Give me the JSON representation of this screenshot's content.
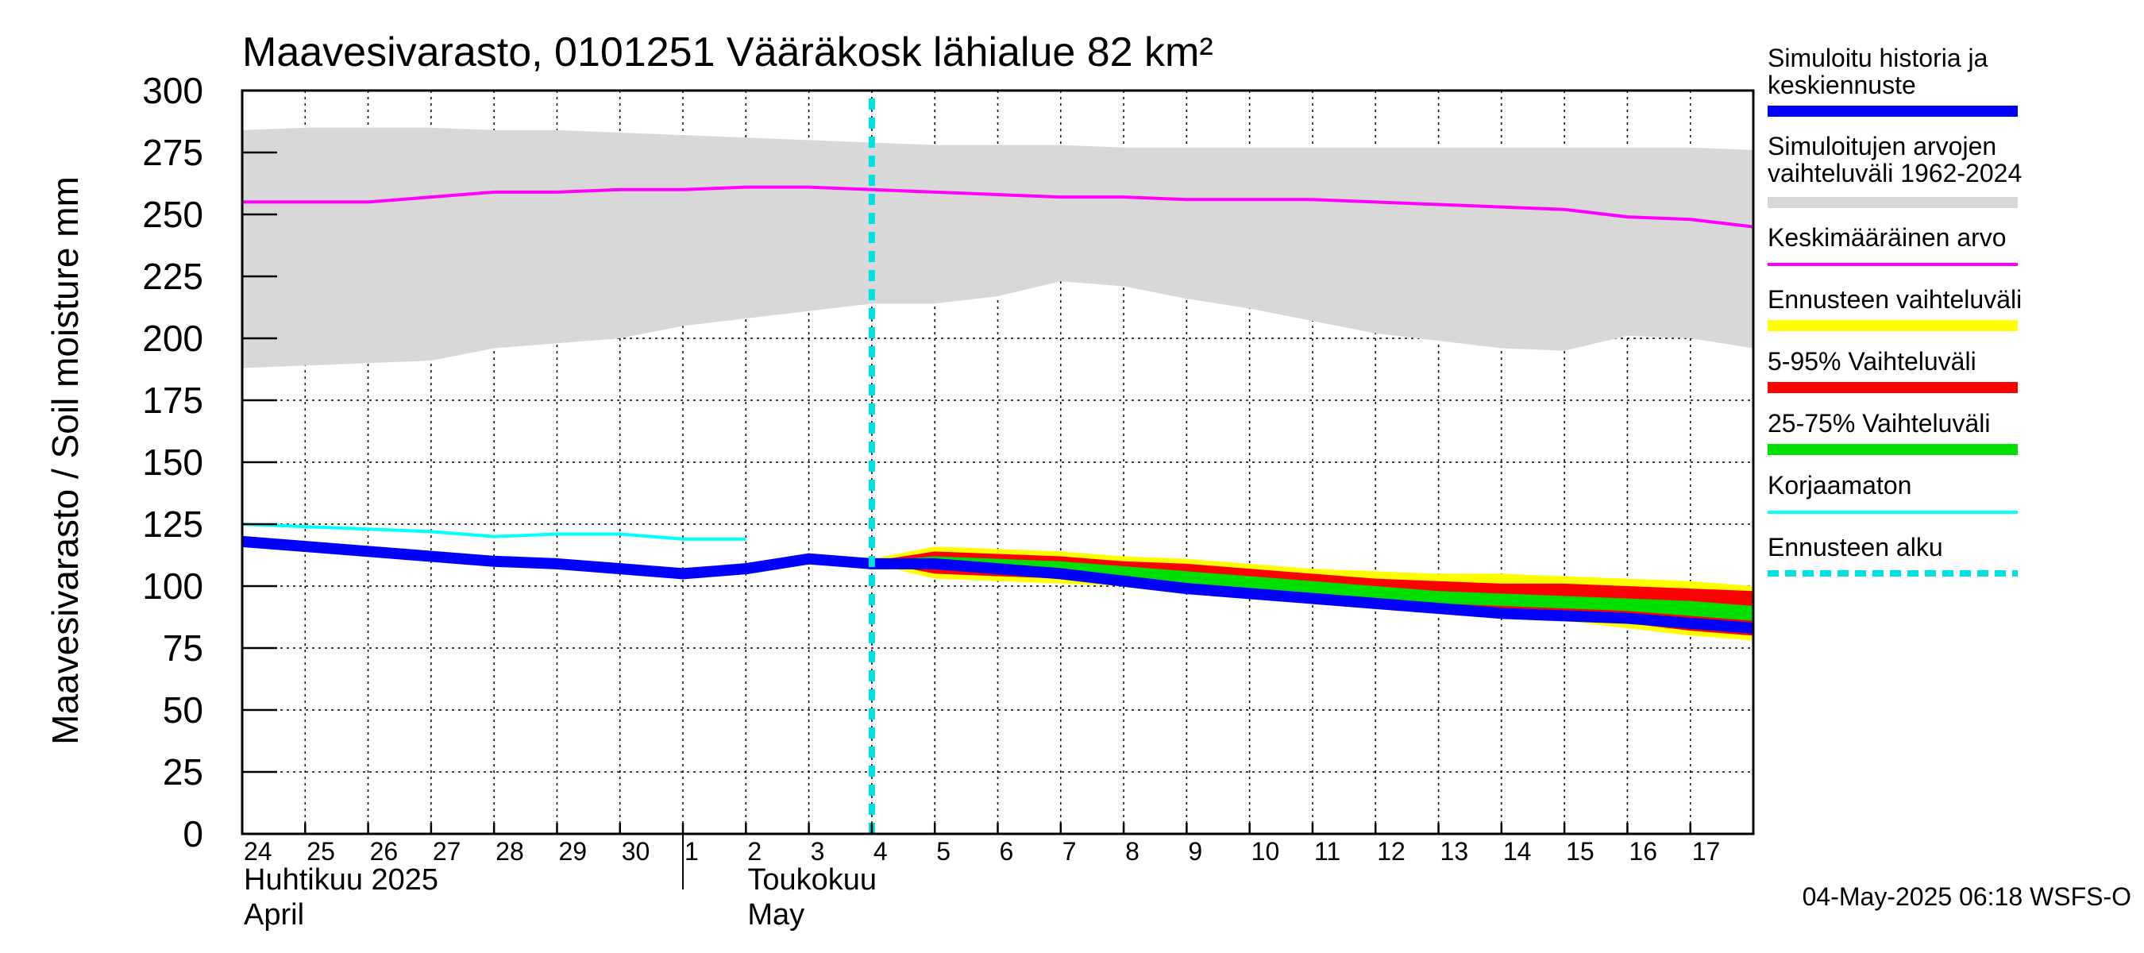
{
  "chart_data": {
    "type": "line",
    "title": "Maavesivarasto, 0101251 Vääräkosk lähialue 82 km²",
    "ylabel": "Maavesivarasto / Soil moisture   mm",
    "ylim": [
      0,
      300
    ],
    "yticks": [
      0,
      25,
      50,
      75,
      100,
      125,
      150,
      175,
      200,
      225,
      250,
      275,
      300
    ],
    "xlim": [
      0,
      24
    ],
    "x_tick_labels": [
      "24",
      "25",
      "26",
      "27",
      "28",
      "29",
      "30",
      "1",
      "2",
      "3",
      "4",
      "5",
      "6",
      "7",
      "8",
      "9",
      "10",
      "11",
      "12",
      "13",
      "14",
      "15",
      "16",
      "17"
    ],
    "month_labels": [
      {
        "fi": "Huhtikuu  2025",
        "en": "April",
        "day_index": 0
      },
      {
        "fi": "Toukokuu",
        "en": "May",
        "day_index": 8
      }
    ],
    "month_boundary_day": 7,
    "forecast_start_day": 10,
    "grid": true,
    "legend_position": "right",
    "timestamp": "04-May-2025 06:18 WSFS-O",
    "colors": {
      "history": "#0000ff",
      "range": "#d8d8d8",
      "mean": "#ff00ff",
      "forecast_range": "#ffff00",
      "p5_95": "#ff0000",
      "p25_75": "#00e000",
      "uncorrected": "#00ffff",
      "forecast_start": "#00e0e0"
    },
    "series": [
      {
        "name": "Simuloitu historia ja keskiennuste",
        "role": "history",
        "x": [
          0,
          1,
          2,
          3,
          4,
          5,
          6,
          7,
          8,
          9,
          10,
          11,
          12,
          13,
          14,
          15,
          16,
          17,
          18,
          19,
          20,
          21,
          22,
          23,
          24
        ],
        "y": [
          118,
          116,
          114,
          112,
          110,
          109,
          107,
          105,
          107,
          111,
          109,
          109,
          107,
          105,
          102,
          99,
          97,
          95,
          93,
          91,
          89,
          88,
          87,
          85,
          83
        ]
      },
      {
        "name": "Simuloitujen arvojen vaihteluväli 1962-2024",
        "role": "range",
        "x": [
          0,
          1,
          2,
          3,
          4,
          5,
          6,
          7,
          8,
          9,
          10,
          11,
          12,
          13,
          14,
          15,
          16,
          17,
          18,
          19,
          20,
          21,
          22,
          23,
          24
        ],
        "upper": [
          284,
          285,
          285,
          285,
          284,
          284,
          283,
          282,
          281,
          280,
          279,
          278,
          278,
          278,
          277,
          277,
          277,
          277,
          277,
          277,
          277,
          277,
          277,
          277,
          276
        ],
        "lower": [
          188,
          189,
          190,
          191,
          196,
          198,
          200,
          205,
          208,
          211,
          214,
          214,
          217,
          223,
          221,
          216,
          212,
          207,
          202,
          199,
          196,
          195,
          201,
          200,
          196
        ]
      },
      {
        "name": "Keskimääräinen arvo",
        "role": "mean",
        "x": [
          0,
          1,
          2,
          3,
          4,
          5,
          6,
          7,
          8,
          9,
          10,
          11,
          12,
          13,
          14,
          15,
          16,
          17,
          18,
          19,
          20,
          21,
          22,
          23,
          24
        ],
        "y": [
          255,
          255,
          255,
          257,
          259,
          259,
          260,
          260,
          261,
          261,
          260,
          259,
          258,
          257,
          257,
          256,
          256,
          256,
          255,
          254,
          253,
          252,
          249,
          248,
          245
        ]
      },
      {
        "name": "Ennusteen vaihteluväli",
        "role": "forecast_range",
        "x": [
          10,
          11,
          12,
          13,
          14,
          15,
          16,
          17,
          18,
          19,
          20,
          21,
          22,
          23,
          24
        ],
        "upper": [
          111,
          116,
          115,
          114,
          112,
          111,
          109,
          107,
          106,
          105,
          105,
          104,
          103,
          102,
          100
        ],
        "lower": [
          109,
          103,
          102,
          101,
          100,
          99,
          97,
          94,
          91,
          89,
          88,
          86,
          83,
          80,
          78
        ]
      },
      {
        "name": "5-95% Vaihteluväli",
        "role": "p5_95",
        "x": [
          10,
          11,
          12,
          13,
          14,
          15,
          16,
          17,
          18,
          19,
          20,
          21,
          22,
          23,
          24
        ],
        "upper": [
          110,
          114,
          113,
          112,
          110,
          109,
          107,
          105,
          103,
          102,
          101,
          101,
          100,
          99,
          98
        ],
        "lower": [
          110,
          105,
          104,
          103,
          102,
          101,
          98,
          95,
          93,
          91,
          90,
          89,
          85,
          82,
          80
        ]
      },
      {
        "name": "25-75% Vaihteluväli",
        "role": "p25_75",
        "x": [
          10,
          11,
          12,
          13,
          14,
          15,
          16,
          17,
          18,
          19,
          20,
          21,
          22,
          23,
          24
        ],
        "upper": [
          110,
          112,
          111,
          110,
          108,
          106,
          104,
          102,
          100,
          98,
          97,
          96,
          95,
          94,
          92
        ],
        "lower": [
          110,
          108,
          107,
          105,
          103,
          101,
          99,
          97,
          95,
          93,
          92,
          91,
          90,
          88,
          86
        ]
      },
      {
        "name": "Korjaamaton",
        "role": "uncorrected",
        "x": [
          0,
          1,
          2,
          3,
          4,
          5,
          6,
          7,
          8
        ],
        "y": [
          125,
          124,
          123,
          122,
          120,
          121,
          121,
          119,
          119
        ]
      },
      {
        "name": "Ennusteen alku",
        "role": "forecast_start",
        "x": [
          10,
          10
        ],
        "y": [
          0,
          300
        ]
      }
    ]
  }
}
